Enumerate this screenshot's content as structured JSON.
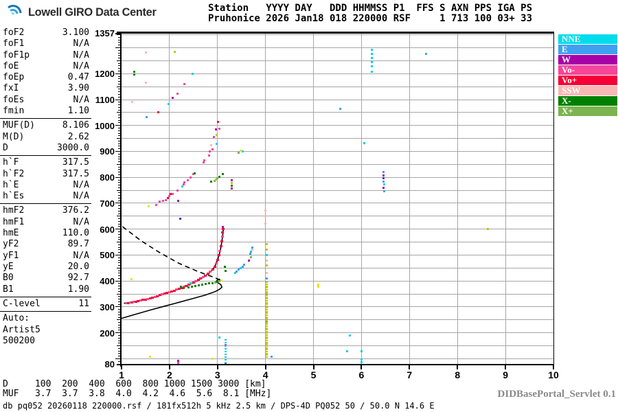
{
  "header": {
    "logo_text": "Lowell GIRO Data Center",
    "station_line1": "Station   YYYY DAY   DDD HHMMSS P1  FFS S AXN PPS IGA PS",
    "station_line2": "Pruhonice 2026 Jan18 018 220000 RSF     1 713 100 03+ 33"
  },
  "left_panel": {
    "sections": [
      {
        "rows": [
          [
            "foF2",
            "3.100"
          ],
          [
            "foF1",
            "N/A"
          ],
          [
            "foF1p",
            "N/A"
          ],
          [
            "foE",
            "N/A"
          ],
          [
            "foEp",
            "0.47"
          ],
          [
            "fxI",
            "3.90"
          ],
          [
            "foEs",
            "N/A"
          ],
          [
            "fmin",
            "1.10"
          ]
        ]
      },
      {
        "rows": [
          [
            "MUF(D)",
            "8.106"
          ],
          [
            "M(D)",
            "2.62"
          ],
          [
            "D",
            "3000.0"
          ]
        ]
      },
      {
        "rows": [
          [
            "h`F",
            "317.5"
          ],
          [
            "h`F2",
            "317.5"
          ],
          [
            "h`E",
            "N/A"
          ],
          [
            "h`Es",
            "N/A"
          ]
        ]
      },
      {
        "rows": [
          [
            "hmF2",
            "376.2"
          ],
          [
            "hmF1",
            "N/A"
          ],
          [
            "hmE",
            "110.0"
          ],
          [
            "yF2",
            "89.7"
          ],
          [
            "yF1",
            "N/A"
          ],
          [
            "yE",
            "20.0"
          ],
          [
            "B0",
            "92.7"
          ],
          [
            "B1",
            "1.90"
          ]
        ]
      },
      {
        "rows": [
          [
            "C-level",
            "11"
          ]
        ]
      },
      {
        "lines": [
          "Auto:",
          "Artist5",
          "500200"
        ]
      }
    ]
  },
  "legend": {
    "items": [
      {
        "label": "NNE",
        "color": "#00dcec"
      },
      {
        "label": "E",
        "color": "#3fa0f0"
      },
      {
        "label": "W",
        "color": "#a800a8"
      },
      {
        "label": "Vo-",
        "color": "#f5469b"
      },
      {
        "label": "Vo+",
        "color": "#f50037"
      },
      {
        "label": "SSW",
        "color": "#f8b8b4"
      },
      {
        "label": "X-",
        "color": "#008000"
      },
      {
        "label": "X+",
        "color": "#7cb450"
      }
    ]
  },
  "footer": {
    "dmuf_line1": "D     100  200  400  600  800 1000 1500 3000 [km]",
    "dmuf_line2": "MUF   3.7  3.7  3.8  4.0  4.2  4.6  5.6  8.1 [MHz]",
    "db_line": "db pq052 20260118 220000.rsf / 181fx512h 5 kHz 2.5 km / DPS-4D PQ052 50 / 50.0 N 14.6 E",
    "servlet_label": "DIDBasePortal_Servlet 0.1"
  },
  "chart_data": {
    "type": "scatter",
    "title": "Pruhonice ionogram 2026 Jan18 018 220000",
    "x_axis": {
      "unit": "MHz",
      "min": 1,
      "max": 10,
      "ticks": [
        1,
        2,
        3,
        4,
        5,
        6,
        7,
        8,
        9,
        10
      ]
    },
    "y_axis": {
      "unit": "km",
      "min": 80,
      "max": 1357,
      "labels": [
        1357,
        1200,
        1100,
        1000,
        900,
        800,
        700,
        600,
        500,
        400,
        300,
        200,
        80
      ],
      "minor_step": 10,
      "grid_step": 50
    },
    "grid": true,
    "legend_position": "right-outside",
    "palette": {
      "r": "#f50037",
      "p": "#f5469b",
      "s": "#f8b8b4",
      "w": "#a800a8",
      "c": "#00d0e8",
      "b": "#3fa0f0",
      "g": "#008000",
      "l": "#7cb450",
      "o": "#c2c20a",
      "y": "#e6e600",
      "n": "#3838b8"
    },
    "trace": [
      [
        1.1,
        314,
        "p"
      ],
      [
        1.14,
        315,
        "r"
      ],
      [
        1.18,
        316,
        "c"
      ],
      [
        1.22,
        318,
        "r"
      ],
      [
        1.26,
        319,
        "p"
      ],
      [
        1.3,
        321,
        "r"
      ],
      [
        1.35,
        323,
        "r"
      ],
      [
        1.4,
        325,
        "p"
      ],
      [
        1.45,
        327,
        "r"
      ],
      [
        1.5,
        329,
        "r"
      ],
      [
        1.55,
        331,
        "p"
      ],
      [
        1.6,
        334,
        "r"
      ],
      [
        1.65,
        336,
        "r"
      ],
      [
        1.7,
        339,
        "p"
      ],
      [
        1.75,
        342,
        "r"
      ],
      [
        1.8,
        345,
        "r"
      ],
      [
        1.85,
        348,
        "p"
      ],
      [
        1.9,
        351,
        "r"
      ],
      [
        1.95,
        354,
        "r"
      ],
      [
        2.0,
        357,
        "p"
      ],
      [
        2.05,
        360,
        "r"
      ],
      [
        2.1,
        363,
        "r"
      ],
      [
        2.15,
        367,
        "p"
      ],
      [
        2.2,
        370,
        "r"
      ],
      [
        2.25,
        374,
        "r"
      ],
      [
        2.3,
        378,
        "p"
      ],
      [
        2.35,
        382,
        "r"
      ],
      [
        2.4,
        386,
        "r"
      ],
      [
        2.45,
        390,
        "c"
      ],
      [
        2.5,
        394,
        "r"
      ],
      [
        2.55,
        399,
        "p"
      ],
      [
        2.6,
        404,
        "r"
      ],
      [
        2.65,
        409,
        "r"
      ],
      [
        2.7,
        415,
        "p"
      ],
      [
        2.75,
        421,
        "r"
      ],
      [
        2.8,
        428,
        "r"
      ],
      [
        2.85,
        436,
        "p"
      ],
      [
        2.9,
        445,
        "r"
      ],
      [
        2.94,
        456,
        "r"
      ],
      [
        2.97,
        468,
        "p"
      ],
      [
        3.0,
        482,
        "r"
      ],
      [
        3.03,
        500,
        "r"
      ],
      [
        3.05,
        516,
        "p"
      ],
      [
        3.07,
        534,
        "r"
      ],
      [
        3.09,
        554,
        "r"
      ],
      [
        3.1,
        572,
        "p"
      ],
      [
        3.11,
        588,
        "r"
      ],
      [
        3.12,
        601,
        "r"
      ]
    ],
    "points": [
      [
        2.24,
        379,
        "g"
      ],
      [
        2.3,
        374,
        "g"
      ],
      [
        2.4,
        376,
        "g"
      ],
      [
        2.47,
        378,
        "g"
      ],
      [
        2.54,
        380,
        "g"
      ],
      [
        2.61,
        383,
        "g"
      ],
      [
        2.68,
        385,
        "g"
      ],
      [
        2.75,
        388,
        "g"
      ],
      [
        2.82,
        390,
        "g"
      ],
      [
        2.89,
        392,
        "g"
      ],
      [
        2.95,
        394,
        "l"
      ],
      [
        3.0,
        396,
        "g"
      ],
      [
        3.04,
        399,
        "l"
      ],
      [
        3.08,
        402,
        "y"
      ],
      [
        3.15,
        455,
        "g"
      ],
      [
        3.17,
        440,
        "g"
      ],
      [
        3.37,
        430,
        "c"
      ],
      [
        3.4,
        437,
        "b"
      ],
      [
        3.44,
        444,
        "b"
      ],
      [
        3.48,
        450,
        "c"
      ],
      [
        3.52,
        456,
        "b"
      ],
      [
        3.56,
        462,
        "b"
      ],
      [
        3.65,
        480,
        "w"
      ],
      [
        3.69,
        493,
        "l"
      ],
      [
        3.68,
        505,
        "b"
      ],
      [
        3.7,
        513,
        "c"
      ],
      [
        3.72,
        521,
        "s"
      ],
      [
        3.73,
        529,
        "b"
      ],
      [
        1.57,
        687,
        "y"
      ],
      [
        1.72,
        694,
        "p"
      ],
      [
        1.79,
        706,
        "p"
      ],
      [
        1.87,
        709,
        "p"
      ],
      [
        1.93,
        713,
        "p"
      ],
      [
        1.97,
        720,
        "r"
      ],
      [
        2.0,
        728,
        "p"
      ],
      [
        2.02,
        735,
        "r"
      ],
      [
        2.07,
        737,
        "p"
      ],
      [
        2.16,
        748,
        "p"
      ],
      [
        2.18,
        708,
        "w"
      ],
      [
        2.27,
        765,
        "c"
      ],
      [
        2.29,
        772,
        "p"
      ],
      [
        2.31,
        780,
        "p"
      ],
      [
        2.38,
        789,
        "p"
      ],
      [
        2.44,
        800,
        "p"
      ],
      [
        2.49,
        812,
        "p"
      ],
      [
        2.52,
        815,
        "g"
      ],
      [
        2.87,
        783,
        "g"
      ],
      [
        2.94,
        786,
        "l"
      ],
      [
        2.97,
        792,
        "o"
      ],
      [
        3.0,
        797,
        "l"
      ],
      [
        3.04,
        803,
        "g"
      ],
      [
        3.11,
        813,
        "g"
      ],
      [
        3.3,
        790,
        "w"
      ],
      [
        3.3,
        779,
        "o"
      ],
      [
        3.3,
        768,
        "g"
      ],
      [
        3.3,
        757,
        "w"
      ],
      [
        2.22,
        640,
        "n"
      ],
      [
        3.11,
        608,
        "w"
      ],
      [
        2.71,
        857,
        "p"
      ],
      [
        2.73,
        866,
        "p"
      ],
      [
        2.82,
        883,
        "p"
      ],
      [
        2.84,
        901,
        "p"
      ],
      [
        2.89,
        909,
        "p"
      ],
      [
        2.87,
        923,
        "s"
      ],
      [
        2.98,
        928,
        "c"
      ],
      [
        2.92,
        955,
        "p"
      ],
      [
        2.98,
        964,
        "o"
      ],
      [
        2.97,
        984,
        "w"
      ],
      [
        3.04,
        987,
        "p"
      ],
      [
        3.01,
        1015,
        "r"
      ],
      [
        3.44,
        896,
        "l"
      ],
      [
        3.48,
        903,
        "y"
      ],
      [
        3.52,
        900,
        "c"
      ],
      [
        1.51,
        1282,
        "s"
      ],
      [
        2.11,
        1284,
        "o"
      ],
      [
        1.26,
        1206,
        "g"
      ],
      [
        1.27,
        1198,
        "g"
      ],
      [
        2.48,
        1199,
        "c"
      ],
      [
        1.51,
        1164,
        "s"
      ],
      [
        2.31,
        1159,
        "p"
      ],
      [
        2.17,
        1122,
        "p"
      ],
      [
        2.07,
        1106,
        "w"
      ],
      [
        1.98,
        1082,
        "c"
      ],
      [
        1.22,
        1092,
        "s"
      ],
      [
        1.77,
        1051,
        "r"
      ],
      [
        1.52,
        1032,
        "b"
      ],
      [
        6.21,
        1292,
        "c"
      ],
      [
        6.21,
        1276,
        "c"
      ],
      [
        6.21,
        1260,
        "c"
      ],
      [
        6.21,
        1244,
        "c"
      ],
      [
        6.22,
        1228,
        "c"
      ],
      [
        6.21,
        1208,
        "c"
      ],
      [
        7.34,
        1275,
        "b"
      ],
      [
        5.56,
        1064,
        "b"
      ],
      [
        6.06,
        933,
        "c"
      ],
      [
        6.46,
        820,
        "b"
      ],
      [
        6.46,
        808,
        "w"
      ],
      [
        6.46,
        796,
        "n"
      ],
      [
        6.46,
        784,
        "b"
      ],
      [
        6.47,
        772,
        "c"
      ],
      [
        6.46,
        760,
        "w"
      ],
      [
        6.47,
        747,
        "b"
      ],
      [
        8.64,
        600,
        "o"
      ],
      [
        4.0,
        672,
        "s"
      ],
      [
        4.0,
        650,
        "s"
      ],
      [
        4.0,
        622,
        "s"
      ],
      [
        4.03,
        541,
        "o"
      ],
      [
        4.03,
        521,
        "o"
      ],
      [
        4.03,
        500,
        "c"
      ],
      [
        4.02,
        480,
        "s"
      ],
      [
        4.03,
        460,
        "o"
      ],
      [
        4.03,
        430,
        "s"
      ],
      [
        4.02,
        410,
        "b"
      ],
      [
        4.03,
        378,
        "b"
      ],
      [
        4.03,
        345,
        "b"
      ],
      [
        4.03,
        240,
        "b"
      ],
      [
        4.02,
        155,
        "s"
      ],
      [
        4.12,
        109,
        "b"
      ],
      [
        1.21,
        408,
        "y"
      ],
      [
        1.6,
        107,
        "y"
      ],
      [
        2.18,
        93,
        "w"
      ],
      [
        2.18,
        83,
        "p"
      ],
      [
        2.89,
        101,
        "y"
      ],
      [
        3.04,
        181,
        "c"
      ],
      [
        3.17,
        152,
        "p"
      ],
      [
        3.17,
        85,
        "n"
      ],
      [
        5.76,
        189,
        "c"
      ],
      [
        5.7,
        128,
        "c"
      ],
      [
        6.0,
        128,
        "c"
      ],
      [
        6.0,
        97,
        "c"
      ],
      [
        6.0,
        86,
        "c"
      ],
      [
        5.1,
        385,
        "y"
      ],
      [
        5.1,
        377,
        "y"
      ]
    ],
    "columns": [
      {
        "f": 4.03,
        "h1": 107,
        "h2": 400,
        "step": 7,
        "color": "o"
      },
      {
        "f": 3.165,
        "h1": 84,
        "h2": 182,
        "step": 11,
        "color": "c"
      }
    ],
    "curves": [
      {
        "name": "o-trace-model",
        "style": "solid",
        "pts": [
          [
            1.05,
            314
          ],
          [
            1.3,
            321
          ],
          [
            1.6,
            333
          ],
          [
            1.9,
            350
          ],
          [
            2.2,
            369
          ],
          [
            2.5,
            393
          ],
          [
            2.7,
            414
          ],
          [
            2.8,
            427
          ],
          [
            2.9,
            444
          ],
          [
            2.97,
            466
          ],
          [
            3.02,
            492
          ],
          [
            3.06,
            520
          ],
          [
            3.09,
            552
          ],
          [
            3.11,
            580
          ],
          [
            3.12,
            602
          ]
        ]
      },
      {
        "name": "transmission-curve",
        "style": "dashed",
        "pts": [
          [
            1.02,
            610
          ],
          [
            1.4,
            556
          ],
          [
            1.8,
            509
          ],
          [
            2.2,
            468
          ],
          [
            2.6,
            436
          ],
          [
            2.9,
            416
          ],
          [
            3.08,
            402
          ]
        ]
      },
      {
        "name": "true-height-profile",
        "style": "solid",
        "pts": [
          [
            1.0,
            256
          ],
          [
            1.3,
            272
          ],
          [
            1.6,
            288
          ],
          [
            1.9,
            303
          ],
          [
            2.2,
            318
          ],
          [
            2.5,
            333
          ],
          [
            2.75,
            346
          ],
          [
            2.95,
            359
          ],
          [
            3.04,
            368
          ],
          [
            3.09,
            376
          ],
          [
            3.07,
            386
          ],
          [
            3.01,
            393
          ],
          [
            2.97,
            398
          ],
          [
            3.0,
            404
          ],
          [
            3.05,
            408
          ]
        ]
      }
    ]
  }
}
